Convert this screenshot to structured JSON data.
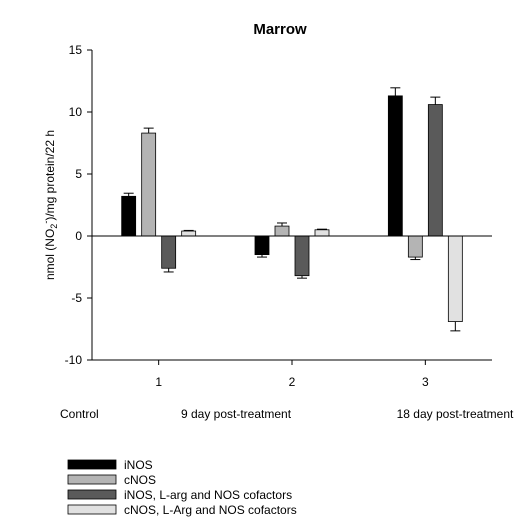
{
  "chart_data": {
    "type": "bar",
    "title": "Marrow",
    "top_caption": "",
    "ylabel_prefix": "nmol (NO",
    "ylabel_sub": "2",
    "ylabel_sup": "-",
    "ylabel_suffix": ")/mg protein/22 h",
    "ylim": [
      -10,
      15
    ],
    "yticks": [
      -10,
      -5,
      0,
      5,
      10,
      15
    ],
    "ytick_labels": [
      "-10",
      "-5",
      "0",
      "5",
      "10",
      "15"
    ],
    "categories": [
      "1",
      "2",
      "3"
    ],
    "group_labels": [
      "Control",
      "9 day post-treatment",
      "18 day post-treatment"
    ],
    "grid": false,
    "legend_position": "bottom-left",
    "series": [
      {
        "name": "iNOS",
        "color": "#000000",
        "values": [
          3.2,
          -1.5,
          11.3
        ],
        "errors": [
          0.25,
          0.2,
          0.65
        ]
      },
      {
        "name": "cNOS",
        "color": "#b4b4b4",
        "values": [
          8.3,
          0.8,
          -1.7
        ],
        "errors": [
          0.4,
          0.25,
          0.2
        ]
      },
      {
        "name": "iNOS, L-arg and NOS cofactors",
        "color": "#5a5a5a",
        "values": [
          -2.6,
          -3.2,
          10.6
        ],
        "errors": [
          0.3,
          0.2,
          0.6
        ]
      },
      {
        "name": "cNOS, L-Arg and NOS cofactors",
        "color": "#e1e1e1",
        "values": [
          0.4,
          0.5,
          -6.9
        ],
        "errors": [
          0.05,
          0.05,
          0.75
        ]
      }
    ]
  }
}
